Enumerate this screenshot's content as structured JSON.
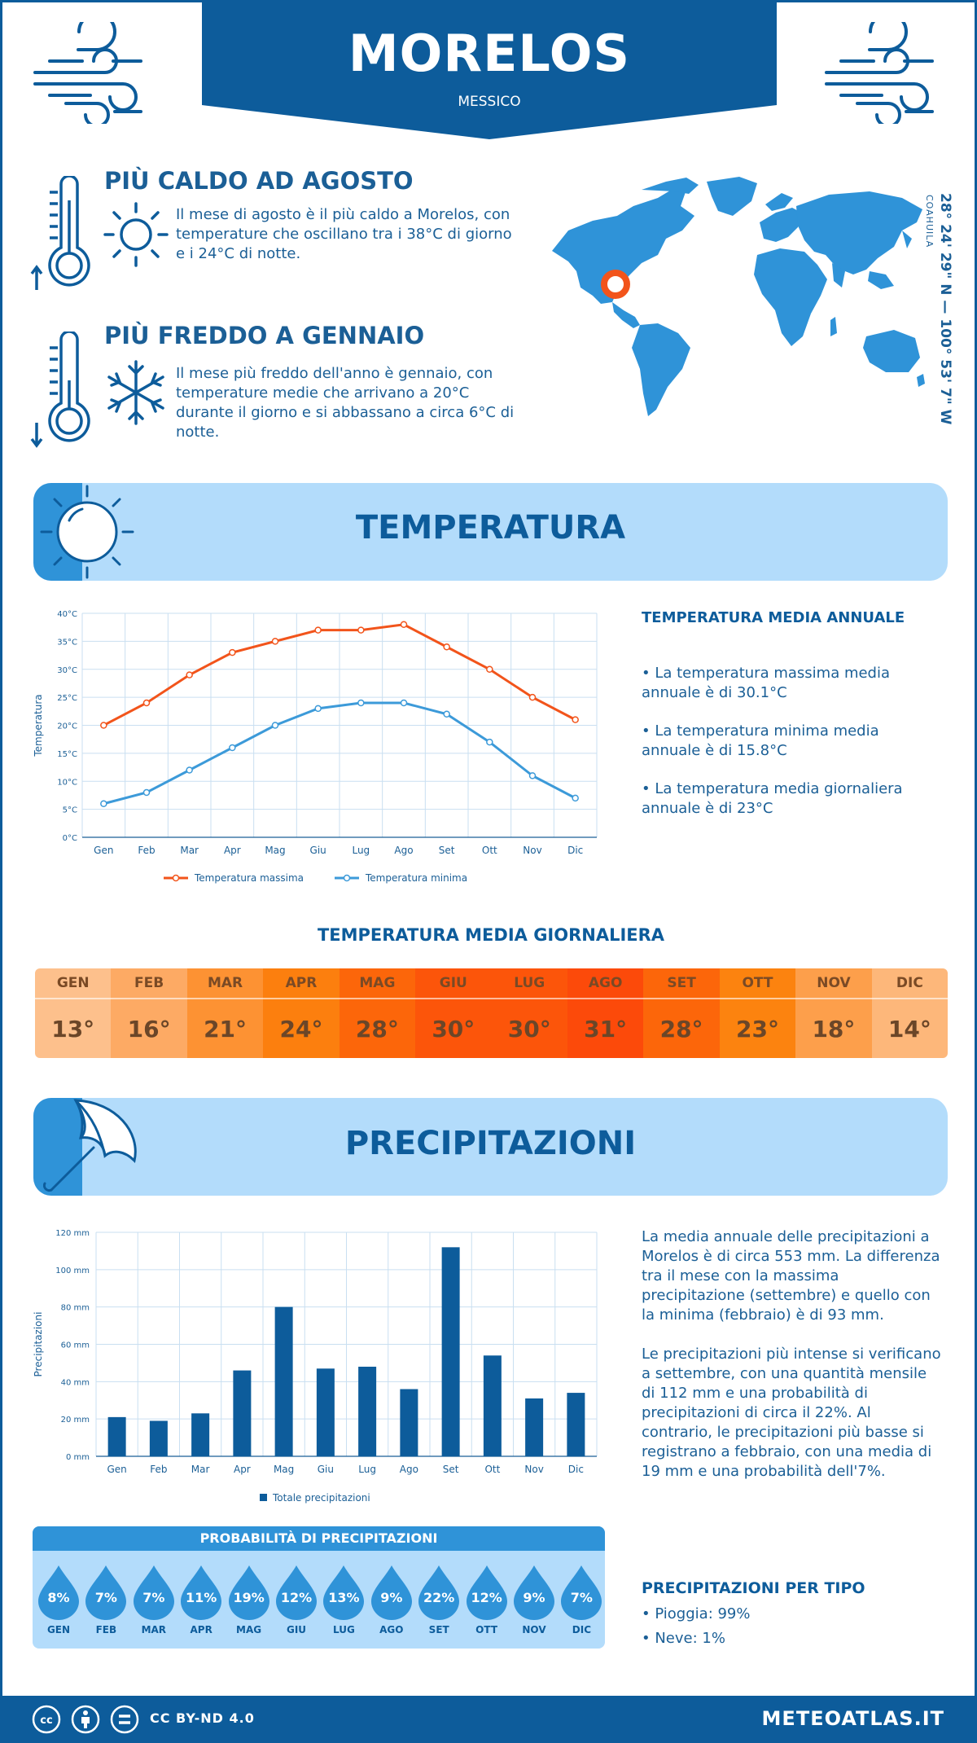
{
  "header": {
    "city": "MORELOS",
    "country": "MESSICO"
  },
  "facts": {
    "hottest": {
      "title": "PIÙ CALDO AD AGOSTO",
      "text": "Il mese di agosto è il più caldo a Morelos, con temperature che oscillano tra i 38°C di giorno e i 24°C di notte."
    },
    "coldest": {
      "title": "PIÙ FREDDO A GENNAIO",
      "text": "Il mese più freddo dell'anno è gennaio, con temperature medie che arrivano a 20°C durante il giorno e si abbassano a circa 6°C di notte."
    }
  },
  "location": {
    "coords": "28° 24' 29\" N — 100° 53' 7\" W",
    "region": "COAHUILA"
  },
  "temperature_section": {
    "title": "TEMPERATURA",
    "summary_title": "TEMPERATURA MEDIA ANNUALE",
    "summary": [
      "• La temperatura massima media annuale è di 30.1°C",
      "• La temperatura minima media annuale è di 15.8°C",
      "• La temperatura media giornaliera annuale è di 23°C"
    ],
    "daily_title": "TEMPERATURA MEDIA GIORNALIERA",
    "daily": [
      {
        "month": "GEN",
        "value": "13°",
        "color": "#fdc08c"
      },
      {
        "month": "FEB",
        "value": "16°",
        "color": "#fdaa64"
      },
      {
        "month": "MAR",
        "value": "21°",
        "color": "#fd9233"
      },
      {
        "month": "APR",
        "value": "24°",
        "color": "#fc7f0e"
      },
      {
        "month": "MAG",
        "value": "28°",
        "color": "#fc660a"
      },
      {
        "month": "GIU",
        "value": "30°",
        "color": "#fc550a"
      },
      {
        "month": "LUG",
        "value": "30°",
        "color": "#fc550a"
      },
      {
        "month": "AGO",
        "value": "31°",
        "color": "#fc4a0a"
      },
      {
        "month": "SET",
        "value": "28°",
        "color": "#fc660a"
      },
      {
        "month": "OTT",
        "value": "23°",
        "color": "#fc830f"
      },
      {
        "month": "NOV",
        "value": "18°",
        "color": "#fd9f4b"
      },
      {
        "month": "DIC",
        "value": "14°",
        "color": "#fdb77a"
      }
    ]
  },
  "precipitation_section": {
    "title": "PRECIPITAZIONI",
    "text1": "La media annuale delle precipitazioni a Morelos è di circa 553 mm. La differenza tra il mese con la massima precipitazione (settembre) e quello con la minima (febbraio) è di 93 mm.",
    "text2": "Le precipitazioni più intense si verificano a settembre, con una quantità mensile di 112 mm e una probabilità di precipitazioni di circa il 22%. Al contrario, le precipitazioni più basse si registrano a febbraio, con una media di 19 mm e una probabilità dell'7%.",
    "prob_title": "PROBABILITÀ DI PRECIPITAZIONI",
    "probabilities": [
      {
        "month": "GEN",
        "value": "8%"
      },
      {
        "month": "FEB",
        "value": "7%"
      },
      {
        "month": "MAR",
        "value": "7%"
      },
      {
        "month": "APR",
        "value": "11%"
      },
      {
        "month": "MAG",
        "value": "19%"
      },
      {
        "month": "GIU",
        "value": "12%"
      },
      {
        "month": "LUG",
        "value": "13%"
      },
      {
        "month": "AGO",
        "value": "9%"
      },
      {
        "month": "SET",
        "value": "22%"
      },
      {
        "month": "OTT",
        "value": "12%"
      },
      {
        "month": "NOV",
        "value": "9%"
      },
      {
        "month": "DIC",
        "value": "7%"
      }
    ],
    "type_title": "PRECIPITAZIONI PER TIPO",
    "types": [
      "• Pioggia: 99%",
      "• Neve: 1%"
    ]
  },
  "chart_data": [
    {
      "type": "line",
      "categories": [
        "Gen",
        "Feb",
        "Mar",
        "Apr",
        "Mag",
        "Giu",
        "Lug",
        "Ago",
        "Set",
        "Ott",
        "Nov",
        "Dic"
      ],
      "series": [
        {
          "name": "Temperatura massima",
          "values": [
            20,
            24,
            29,
            33,
            35,
            37,
            37,
            38,
            34,
            30,
            25,
            21
          ],
          "color": "#f2541b"
        },
        {
          "name": "Temperatura minima",
          "values": [
            6,
            8,
            12,
            16,
            20,
            23,
            24,
            24,
            22,
            17,
            11,
            7
          ],
          "color": "#3c9ad9"
        }
      ],
      "ylabel": "Temperatura",
      "ylim": [
        0,
        40
      ],
      "yticks": [
        "0°C",
        "5°C",
        "10°C",
        "15°C",
        "20°C",
        "25°C",
        "30°C",
        "35°C",
        "40°C"
      ],
      "grid": true,
      "legend": "bottom"
    },
    {
      "type": "bar",
      "categories": [
        "Gen",
        "Feb",
        "Mar",
        "Apr",
        "Mag",
        "Giu",
        "Lug",
        "Ago",
        "Set",
        "Ott",
        "Nov",
        "Dic"
      ],
      "series": [
        {
          "name": "Totale precipitazioni",
          "values": [
            21,
            19,
            23,
            46,
            80,
            47,
            48,
            36,
            112,
            54,
            31,
            34
          ],
          "color": "#0d5c9b"
        }
      ],
      "ylabel": "Precipitazioni",
      "ylim": [
        0,
        120
      ],
      "yticks": [
        "0 mm",
        "20 mm",
        "40 mm",
        "60 mm",
        "80 mm",
        "100 mm",
        "120 mm"
      ],
      "grid": true,
      "legend": "bottom"
    }
  ],
  "footer": {
    "license": "CC BY-ND 4.0",
    "brand": "METEOATLAS.IT",
    "icons": [
      "cc-icon",
      "by-icon",
      "nd-icon"
    ]
  }
}
